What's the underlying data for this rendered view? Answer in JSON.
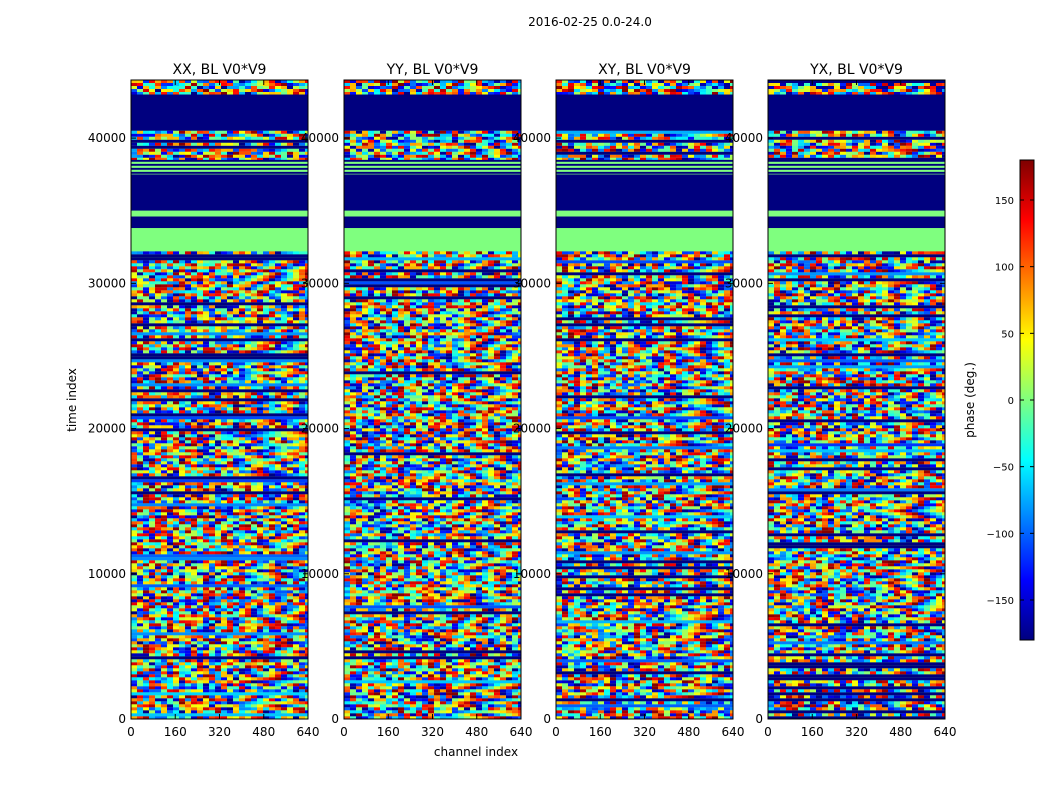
{
  "chart_data": {
    "type": "heatmap",
    "suptitle": "2016-02-25 0.0-24.0",
    "xlabel": "channel index",
    "ylabel": "time index",
    "xlim": [
      0,
      640
    ],
    "ylim": [
      0,
      44000
    ],
    "xticks": [
      0,
      160,
      320,
      480,
      640
    ],
    "yticks": [
      0,
      10000,
      20000,
      30000,
      40000
    ],
    "panels": [
      {
        "title": "XX, BL V0*V9",
        "polarization": "XX"
      },
      {
        "title": "YY, BL V0*V9",
        "polarization": "YY"
      },
      {
        "title": "XY, BL V0*V9",
        "polarization": "XY"
      },
      {
        "title": "YX, BL V0*V9",
        "polarization": "YX"
      }
    ],
    "colorbar": {
      "label": "phase (deg.)",
      "range": [
        -180,
        180
      ],
      "ticks": [
        -150,
        -100,
        -50,
        0,
        50,
        100,
        150
      ],
      "colormap": "jet",
      "colors": [
        "#00007f",
        "#0000ff",
        "#007fff",
        "#00ffff",
        "#7fff7f",
        "#ffff00",
        "#ff7f00",
        "#ff0000",
        "#7f0000"
      ]
    },
    "bands": [
      {
        "from": 43000,
        "to": 44000,
        "kind": "noise"
      },
      {
        "from": 40500,
        "to": 43000,
        "kind": "flat",
        "phase": -180
      },
      {
        "from": 38500,
        "to": 40500,
        "kind": "noise"
      },
      {
        "from": 37500,
        "to": 38500,
        "kind": "stripes"
      },
      {
        "from": 35000,
        "to": 37500,
        "kind": "flat",
        "phase": -180
      },
      {
        "from": 34600,
        "to": 35000,
        "kind": "flat",
        "phase": 0
      },
      {
        "from": 33800,
        "to": 34600,
        "kind": "flat",
        "phase": -180
      },
      {
        "from": 32200,
        "to": 33800,
        "kind": "flat",
        "phase": 0
      },
      {
        "from": 0,
        "to": 32200,
        "kind": "noise"
      }
    ]
  }
}
